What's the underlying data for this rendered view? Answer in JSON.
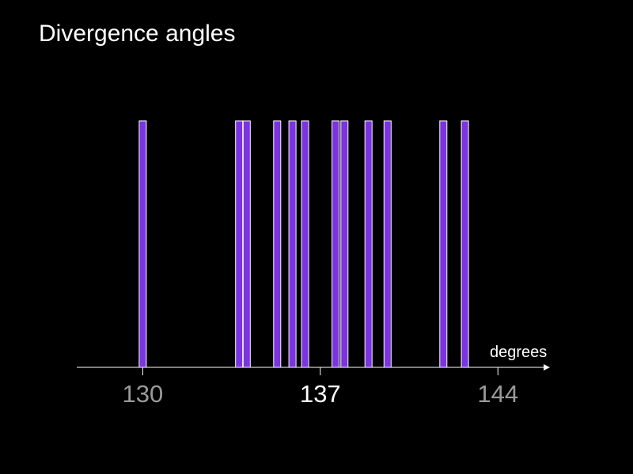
{
  "title": "Divergence angles",
  "chart_data": {
    "type": "bar",
    "title": "Divergence angles",
    "xlabel": "degrees",
    "ylabel": "",
    "x_ticks": [
      {
        "value": 130,
        "label": "130",
        "color": "#9a9a9a"
      },
      {
        "value": 137,
        "label": "137",
        "color": "#ffffff"
      },
      {
        "value": 144,
        "label": "144",
        "color": "#9a9a9a"
      }
    ],
    "xlim": [
      127.4,
      145.8
    ],
    "ylim": [
      0,
      1
    ],
    "grid": false,
    "bar_color": "#7b34e0",
    "bar_edge_color": "#ffffff",
    "values_x": [
      130.0,
      133.8,
      134.1,
      135.3,
      135.9,
      136.4,
      137.6,
      137.95,
      138.9,
      139.65,
      141.85,
      142.7
    ],
    "values_y": [
      1,
      1,
      1,
      1,
      1,
      1,
      1,
      1,
      1,
      1,
      1,
      1
    ]
  }
}
